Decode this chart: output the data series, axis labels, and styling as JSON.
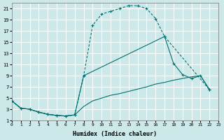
{
  "xlabel": "Humidex (Indice chaleur)",
  "bg_color": "#cce8e8",
  "line_color": "#007070",
  "grid_color": "#ffffff",
  "xlim": [
    0,
    23
  ],
  "ylim": [
    1,
    22
  ],
  "xticks": [
    0,
    1,
    2,
    3,
    4,
    5,
    6,
    7,
    8,
    9,
    10,
    11,
    12,
    13,
    14,
    15,
    16,
    17,
    18,
    19,
    20,
    21,
    22,
    23
  ],
  "yticks": [
    1,
    3,
    5,
    7,
    9,
    11,
    13,
    15,
    17,
    19,
    21
  ],
  "curve1_x": [
    0,
    1,
    2,
    3,
    4,
    5,
    6,
    7,
    8,
    9,
    10,
    11,
    12,
    13,
    14,
    15,
    16,
    17,
    22
  ],
  "curve1_y": [
    4.5,
    3.2,
    3.0,
    2.5,
    2.1,
    1.9,
    1.8,
    2.0,
    9.0,
    18.0,
    20.0,
    20.5,
    21.0,
    21.5,
    21.5,
    21.0,
    19.2,
    16.0,
    6.5
  ],
  "curve2_x": [
    0,
    1,
    2,
    3,
    4,
    5,
    6,
    7,
    8,
    17,
    18,
    19,
    20,
    21,
    22
  ],
  "curve2_y": [
    4.5,
    3.2,
    3.0,
    2.5,
    2.1,
    1.9,
    1.8,
    2.0,
    9.0,
    16.0,
    11.2,
    9.2,
    8.5,
    9.0,
    6.5
  ],
  "curve3_x": [
    0,
    1,
    2,
    3,
    4,
    5,
    6,
    7,
    8,
    9,
    10,
    11,
    12,
    13,
    14,
    15,
    16,
    17,
    18,
    19,
    20,
    21,
    22
  ],
  "curve3_y": [
    4.5,
    3.2,
    3.0,
    2.5,
    2.1,
    1.9,
    1.8,
    2.0,
    3.5,
    4.5,
    5.0,
    5.5,
    5.8,
    6.2,
    6.6,
    7.0,
    7.5,
    7.8,
    8.2,
    8.5,
    8.8,
    9.0,
    6.5
  ]
}
